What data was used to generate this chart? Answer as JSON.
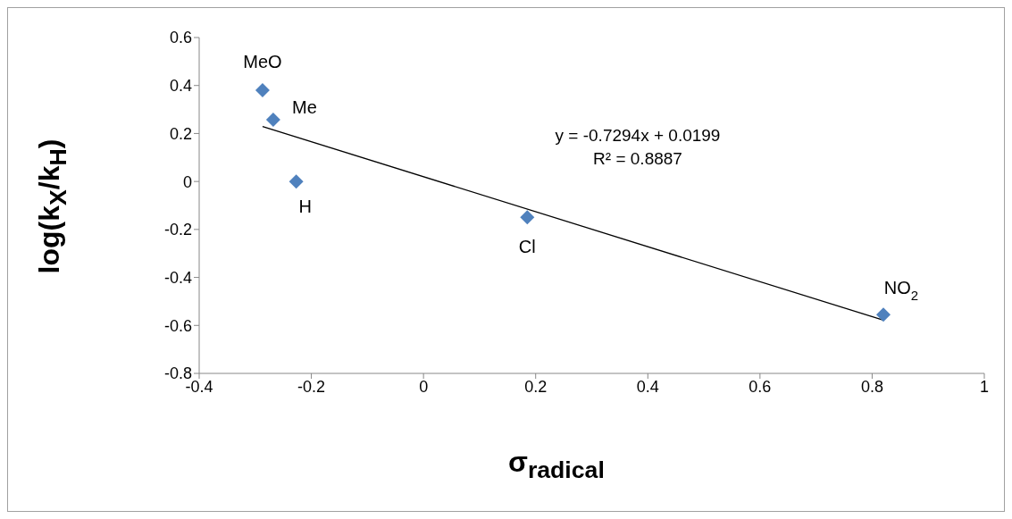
{
  "chart_data": {
    "type": "scatter",
    "xlabel": "σ$_{radical}$",
    "ylabel": "log(k$_{X}$/k$_{H}$)",
    "xlim": [
      -0.4,
      1
    ],
    "xticks": [
      -0.4,
      -0.2,
      0,
      0.2,
      0.4,
      0.6,
      0.8,
      1
    ],
    "ylim": [
      -0.8,
      0.6
    ],
    "yticks": [
      -0.8,
      -0.6,
      -0.4,
      -0.2,
      0,
      0.2,
      0.4,
      0.6
    ],
    "grid": false,
    "legend": false,
    "series": [
      {
        "marker": "diamond",
        "color": "#4f81bd",
        "x": [
          -0.287,
          -0.268,
          -0.227,
          0.185,
          0.82
        ],
        "values": [
          0.38,
          0.257,
          0,
          -0.149,
          -0.555
        ]
      },
      {
        "type": "line",
        "marker": "none",
        "color": "#000000",
        "x": [
          -0.287,
          0.82
        ],
        "values": [
          0.229,
          -0.578
        ]
      }
    ],
    "annotations": [
      {
        "text": "MeO",
        "x": -0.287,
        "y": 0.38
      },
      {
        "text": "Me",
        "x": -0.268,
        "y": 0.257
      },
      {
        "text": "H",
        "x": -0.227,
        "y": 0
      },
      {
        "text": "Cl",
        "x": 0.185,
        "y": -0.149
      },
      {
        "text": "NO$_{2}$",
        "x": 0.82,
        "y": -0.555
      },
      "y = -0.7294x + 0.0199",
      "R² = 0.8887"
    ]
  }
}
